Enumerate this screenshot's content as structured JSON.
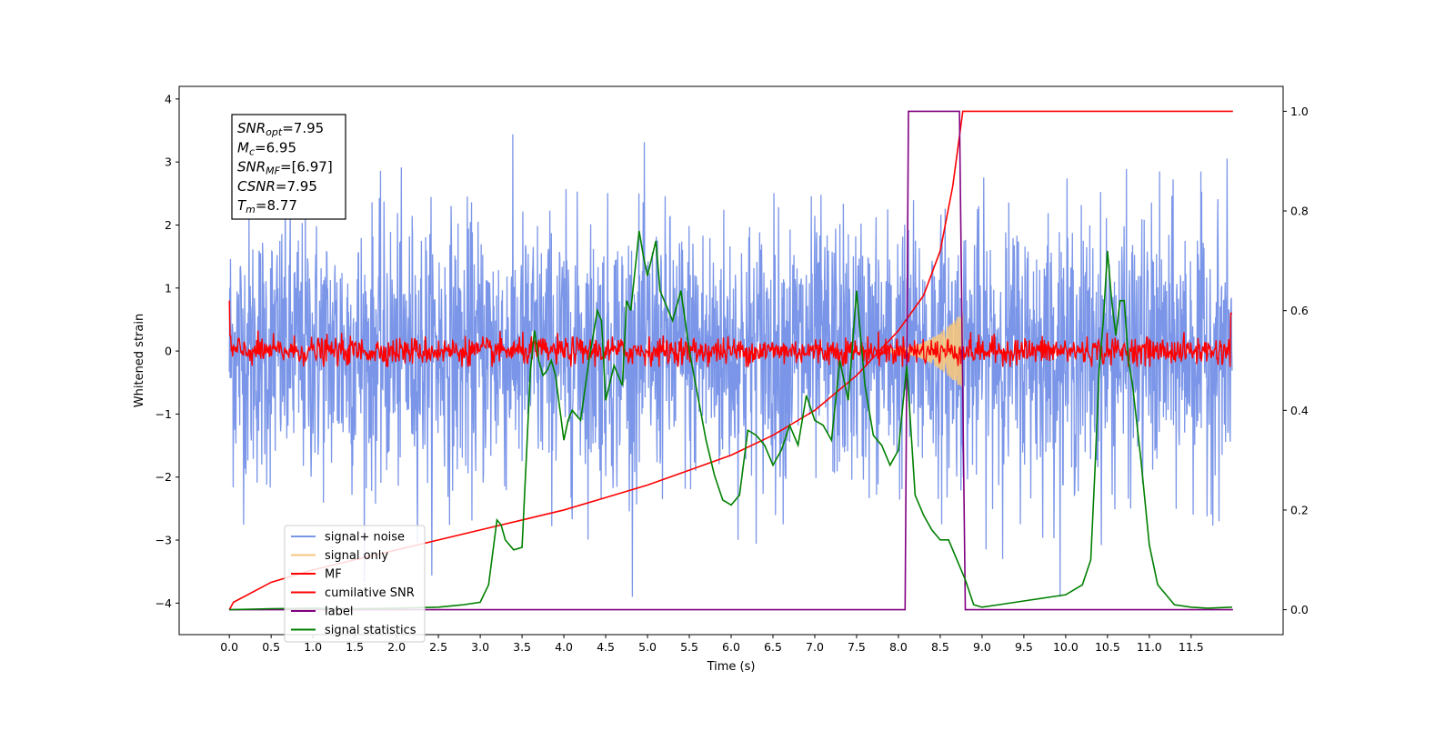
{
  "chart_data": {
    "type": "line",
    "xlabel": "Time (s)",
    "ylabel_left": "Whitened strain",
    "ylabel_right": "",
    "xlim": [
      -0.6,
      12.6
    ],
    "ylim_left": [
      -4.5,
      4.2
    ],
    "ylim_right": [
      -0.05,
      1.05
    ],
    "x_ticks": [
      0.0,
      0.5,
      1.0,
      1.5,
      2.0,
      2.5,
      3.0,
      3.5,
      4.0,
      4.5,
      5.0,
      5.5,
      6.0,
      6.5,
      7.0,
      7.5,
      8.0,
      8.5,
      9.0,
      9.5,
      10.0,
      10.5,
      11.0,
      11.5
    ],
    "x_tick_labels": [
      "0.0",
      "0.5",
      "1.0",
      "1.5",
      "2.0",
      "2.5",
      "3.0",
      "3.5",
      "4.0",
      "4.5",
      "5.0",
      "5.5",
      "6.0",
      "6.5",
      "7.0",
      "7.5",
      "8.0",
      "8.5",
      "9.0",
      "9.5",
      "10.0",
      "10.5",
      "11.0",
      "11.5"
    ],
    "y_ticks_left": [
      -4,
      -3,
      -2,
      -1,
      0,
      1,
      2,
      3,
      4
    ],
    "y_tick_labels_left": [
      "−4",
      "−3",
      "−2",
      "−1",
      "0",
      "1",
      "2",
      "3",
      "4"
    ],
    "y_ticks_right": [
      0.0,
      0.2,
      0.4,
      0.6,
      0.8,
      1.0
    ],
    "y_tick_labels_right": [
      "0.0",
      "0.2",
      "0.4",
      "0.6",
      "0.8",
      "1.0"
    ],
    "grid": false,
    "legend_position": "lower-left",
    "annotation": {
      "lines": [
        {
          "main": "SNR",
          "sub": "opt",
          "rest": "=7.95"
        },
        {
          "main": "M",
          "sub": "c",
          "rest": "=6.95"
        },
        {
          "main": "SNR",
          "sub": "MF",
          "rest": "=[6.97]"
        },
        {
          "main": "CSNR",
          "sub": "",
          "rest": "=7.95"
        },
        {
          "main": "T",
          "sub": "m",
          "rest": "=8.77"
        }
      ]
    },
    "series": [
      {
        "name": "signal+ noise",
        "color": "#7b96e8",
        "axis": "left",
        "kind": "noise",
        "x_range": [
          0.0,
          11.99
        ],
        "envelope": [
          -3.9,
          3.45
        ]
      },
      {
        "name": "signal only",
        "color": "#f5c77e",
        "axis": "left",
        "kind": "chirp",
        "x_range": [
          7.9,
          8.77
        ],
        "amplitude_end": 0.6
      },
      {
        "name": "MF",
        "color": "#ff0000",
        "axis": "left",
        "kind": "mf",
        "x_range": [
          0.0,
          11.99
        ],
        "envelope": [
          -0.25,
          0.5
        ]
      },
      {
        "name": "cumilative SNR",
        "color": "#ff0000",
        "axis": "right",
        "x": [
          0.0,
          0.05,
          0.5,
          1.0,
          1.5,
          2.0,
          2.5,
          3.0,
          3.5,
          4.0,
          4.5,
          5.0,
          5.5,
          6.0,
          6.5,
          7.0,
          7.5,
          8.0,
          8.3,
          8.5,
          8.65,
          8.77,
          12.0
        ],
        "y": [
          0.0,
          0.015,
          0.055,
          0.08,
          0.1,
          0.12,
          0.14,
          0.16,
          0.18,
          0.2,
          0.225,
          0.25,
          0.28,
          0.31,
          0.35,
          0.4,
          0.47,
          0.56,
          0.63,
          0.72,
          0.85,
          1.0,
          1.0
        ]
      },
      {
        "name": "label",
        "color": "#800080",
        "axis": "right",
        "x": [
          0.0,
          8.08,
          8.12,
          8.73,
          8.8,
          12.0
        ],
        "y": [
          0.0,
          0.0,
          1.0,
          1.0,
          0.0,
          0.0
        ]
      },
      {
        "name": "signal statistics",
        "color": "#008000",
        "axis": "right",
        "x": [
          0.0,
          0.5,
          1.0,
          1.5,
          2.0,
          2.5,
          2.8,
          3.0,
          3.1,
          3.2,
          3.25,
          3.3,
          3.4,
          3.5,
          3.55,
          3.6,
          3.65,
          3.7,
          3.75,
          3.8,
          3.85,
          3.9,
          4.0,
          4.05,
          4.1,
          4.15,
          4.2,
          4.3,
          4.4,
          4.45,
          4.5,
          4.6,
          4.7,
          4.75,
          4.8,
          4.9,
          4.95,
          5.0,
          5.1,
          5.15,
          5.2,
          5.3,
          5.4,
          5.5,
          5.6,
          5.7,
          5.8,
          5.9,
          6.0,
          6.1,
          6.2,
          6.3,
          6.4,
          6.5,
          6.6,
          6.7,
          6.8,
          6.9,
          7.0,
          7.1,
          7.2,
          7.3,
          7.4,
          7.5,
          7.6,
          7.7,
          7.8,
          7.9,
          8.0,
          8.1,
          8.2,
          8.3,
          8.4,
          8.5,
          8.6,
          8.7,
          8.8,
          8.9,
          9.0,
          9.2,
          9.4,
          9.6,
          9.8,
          10.0,
          10.2,
          10.3,
          10.35,
          10.4,
          10.45,
          10.5,
          10.55,
          10.6,
          10.65,
          10.7,
          10.75,
          10.8,
          10.9,
          11.0,
          11.1,
          11.2,
          11.3,
          11.5,
          11.7,
          11.99
        ],
        "y": [
          0.0,
          0.002,
          0.003,
          0.002,
          0.003,
          0.005,
          0.01,
          0.015,
          0.05,
          0.18,
          0.17,
          0.14,
          0.12,
          0.125,
          0.3,
          0.48,
          0.56,
          0.5,
          0.47,
          0.48,
          0.5,
          0.47,
          0.34,
          0.38,
          0.4,
          0.39,
          0.38,
          0.5,
          0.6,
          0.58,
          0.42,
          0.49,
          0.45,
          0.62,
          0.6,
          0.76,
          0.71,
          0.67,
          0.74,
          0.64,
          0.62,
          0.58,
          0.64,
          0.52,
          0.43,
          0.34,
          0.27,
          0.22,
          0.21,
          0.23,
          0.36,
          0.35,
          0.33,
          0.29,
          0.32,
          0.37,
          0.33,
          0.43,
          0.38,
          0.37,
          0.34,
          0.5,
          0.42,
          0.64,
          0.45,
          0.35,
          0.33,
          0.29,
          0.32,
          0.49,
          0.23,
          0.19,
          0.16,
          0.14,
          0.14,
          0.1,
          0.06,
          0.01,
          0.005,
          0.01,
          0.015,
          0.02,
          0.025,
          0.03,
          0.05,
          0.1,
          0.28,
          0.48,
          0.58,
          0.72,
          0.62,
          0.55,
          0.62,
          0.62,
          0.5,
          0.45,
          0.3,
          0.13,
          0.05,
          0.03,
          0.01,
          0.005,
          0.003,
          0.005
        ]
      }
    ]
  }
}
